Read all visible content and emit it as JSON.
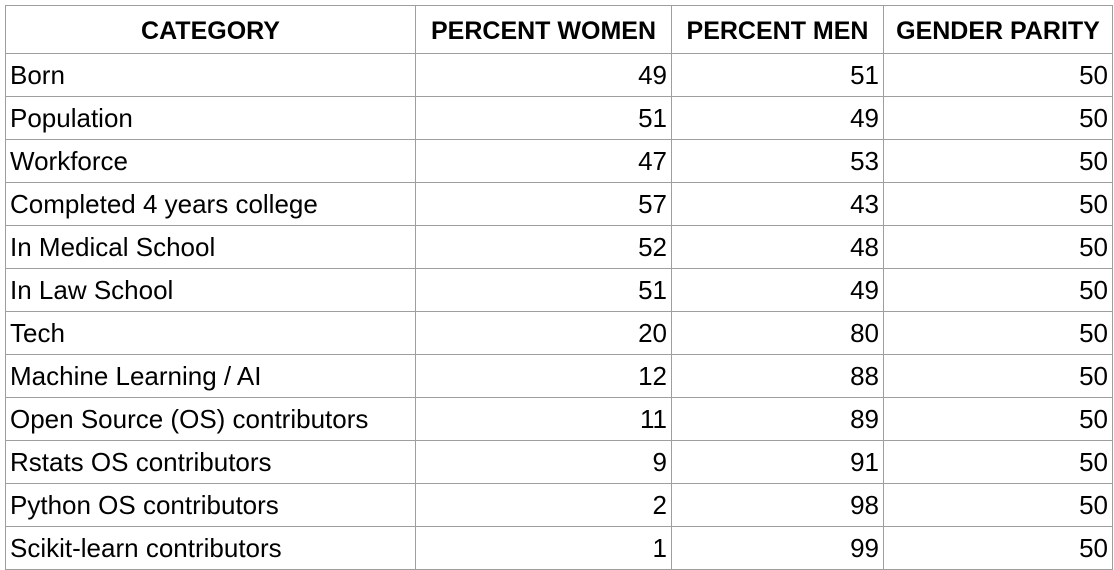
{
  "table": {
    "headers": [
      "CATEGORY",
      "PERCENT WOMEN",
      "PERCENT MEN",
      "GENDER PARITY"
    ],
    "rows": [
      {
        "category": "Born",
        "women": "49",
        "men": "51",
        "parity": "50"
      },
      {
        "category": "Population",
        "women": "51",
        "men": "49",
        "parity": "50"
      },
      {
        "category": "Workforce",
        "women": "47",
        "men": "53",
        "parity": "50"
      },
      {
        "category": "Completed 4 years college",
        "women": "57",
        "men": "43",
        "parity": "50"
      },
      {
        "category": "In Medical School",
        "women": "52",
        "men": "48",
        "parity": "50"
      },
      {
        "category": "In Law School",
        "women": "51",
        "men": "49",
        "parity": "50"
      },
      {
        "category": "Tech",
        "women": "20",
        "men": "80",
        "parity": "50"
      },
      {
        "category": "Machine Learning / AI",
        "women": "12",
        "men": "88",
        "parity": "50"
      },
      {
        "category": "Open Source (OS) contributors",
        "women": "11",
        "men": "89",
        "parity": "50"
      },
      {
        "category": "Rstats OS contributors",
        "women": "9",
        "men": "91",
        "parity": "50"
      },
      {
        "category": "Python OS contributors",
        "women": "2",
        "men": "98",
        "parity": "50"
      },
      {
        "category": "Scikit-learn contributors",
        "women": "1",
        "men": "99",
        "parity": "50"
      }
    ]
  },
  "colors": {
    "grid": "#9e9e9e",
    "text": "#000000",
    "background": "#ffffff"
  }
}
